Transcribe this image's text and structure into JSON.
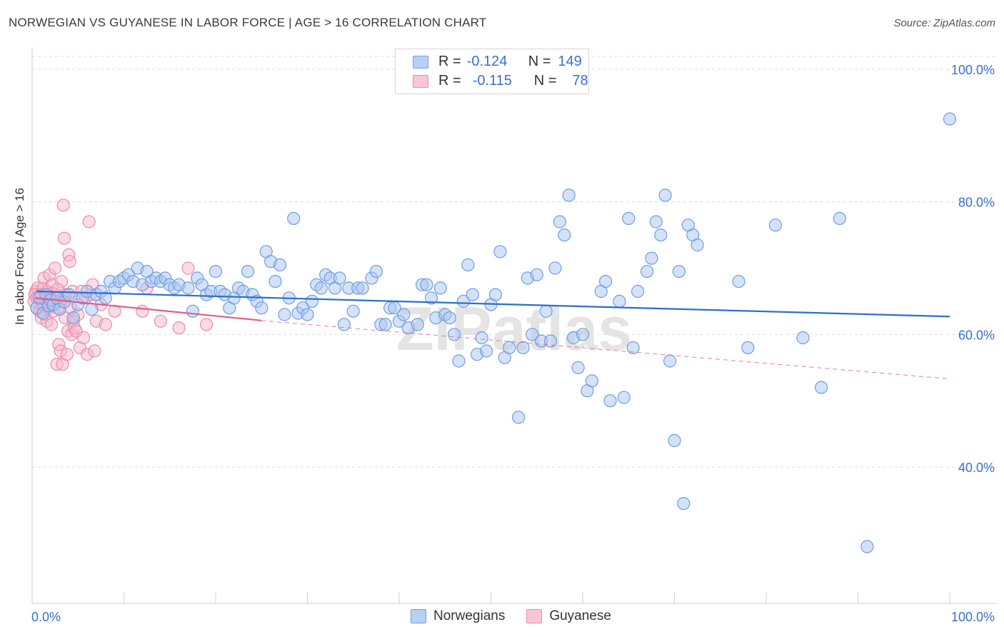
{
  "header": {
    "title": "NORWEGIAN VS GUYANESE IN LABOR FORCE | AGE > 16 CORRELATION CHART",
    "source": "Source: ZipAtlas.com"
  },
  "legend": {
    "rows": [
      {
        "r_label": "R =",
        "r_value": "-0.124",
        "n_label": "N =",
        "n_value": "149"
      },
      {
        "r_label": "R =",
        "r_value": "-0.115",
        "n_label": "N =",
        "n_value": "78"
      }
    ]
  },
  "bottom_legend": [
    "Norwegians",
    "Guyanese"
  ],
  "watermark": "ZIPatlas",
  "colors": {
    "norwegian_fill": "#a9c6f2",
    "norwegian_stroke": "#6f9de0",
    "norwegian_line": "#2c6fd0",
    "guyanese_fill": "#f7b8cc",
    "guyanese_stroke": "#ec8aab",
    "guyanese_line": "#e45b88",
    "axis_label": "#3b6fd0",
    "grid": "#dcdcdc"
  },
  "chart_data": {
    "type": "scatter",
    "title": "NORWEGIAN VS GUYANESE IN LABOR FORCE | AGE > 16 CORRELATION CHART",
    "xlabel": "",
    "ylabel": "In Labor Force | Age > 16",
    "xlim": [
      0,
      100
    ],
    "ylim": [
      20,
      100
    ],
    "x_tick_labels": [
      "0.0%",
      "100.0%"
    ],
    "y_tick_labels": [
      "40.0%",
      "60.0%",
      "80.0%",
      "100.0%"
    ],
    "y_ticks": [
      40,
      60,
      80,
      100
    ],
    "grid": true,
    "legend_position": "top-center",
    "series": [
      {
        "name": "Norwegians",
        "r": -0.124,
        "n": 149,
        "trend": {
          "x0": 0.5,
          "y0": 66.5,
          "x1": 100,
          "y1": 62.7
        },
        "points": [
          [
            0.5,
            64
          ],
          [
            0.8,
            65.5
          ],
          [
            1.2,
            63.2
          ],
          [
            1.5,
            66
          ],
          [
            1.8,
            64.3
          ],
          [
            2,
            65.2
          ],
          [
            2.3,
            64.5
          ],
          [
            2.7,
            65.5
          ],
          [
            3,
            63.8
          ],
          [
            3.5,
            64.9
          ],
          [
            4,
            66
          ],
          [
            4.5,
            62.5
          ],
          [
            5,
            64.5
          ],
          [
            5.5,
            65.5
          ],
          [
            6,
            66.5
          ],
          [
            6.5,
            63.8
          ],
          [
            7,
            66
          ],
          [
            7.5,
            66.5
          ],
          [
            8,
            65.5
          ],
          [
            8.5,
            68
          ],
          [
            9,
            67
          ],
          [
            9.5,
            68
          ],
          [
            10,
            68.5
          ],
          [
            10.5,
            69
          ],
          [
            11,
            68
          ],
          [
            11.5,
            70
          ],
          [
            12,
            67.5
          ],
          [
            12.5,
            69.5
          ],
          [
            13,
            68
          ],
          [
            13.5,
            68.5
          ],
          [
            14,
            68
          ],
          [
            14.5,
            68.5
          ],
          [
            15,
            67.5
          ],
          [
            15.5,
            67
          ],
          [
            16,
            67.5
          ],
          [
            17,
            67
          ],
          [
            17.5,
            63.5
          ],
          [
            18,
            68.5
          ],
          [
            18.5,
            67.5
          ],
          [
            19,
            66
          ],
          [
            19.5,
            66.5
          ],
          [
            20,
            69.5
          ],
          [
            20.5,
            66.5
          ],
          [
            21,
            66
          ],
          [
            21.5,
            64
          ],
          [
            22,
            65.5
          ],
          [
            22.5,
            67
          ],
          [
            23,
            66.5
          ],
          [
            23.5,
            69.5
          ],
          [
            24,
            66
          ],
          [
            24.5,
            65
          ],
          [
            25,
            64
          ],
          [
            25.5,
            72.5
          ],
          [
            26,
            71
          ],
          [
            26.5,
            68
          ],
          [
            27,
            70.5
          ],
          [
            27.5,
            63
          ],
          [
            28,
            65.5
          ],
          [
            28.5,
            77.5
          ],
          [
            29,
            63.2
          ],
          [
            29.5,
            64
          ],
          [
            30,
            63
          ],
          [
            30.5,
            65
          ],
          [
            31,
            67.5
          ],
          [
            31.5,
            67
          ],
          [
            32,
            69
          ],
          [
            32.5,
            68.5
          ],
          [
            33,
            67
          ],
          [
            33.5,
            68.5
          ],
          [
            34,
            61.5
          ],
          [
            34.5,
            67
          ],
          [
            35,
            63.5
          ],
          [
            35.5,
            67
          ],
          [
            36,
            67
          ],
          [
            37,
            68.5
          ],
          [
            37.5,
            69.5
          ],
          [
            38,
            61.5
          ],
          [
            38.5,
            61.5
          ],
          [
            39,
            64
          ],
          [
            39.5,
            64
          ],
          [
            40,
            62
          ],
          [
            40.5,
            63
          ],
          [
            41,
            61
          ],
          [
            42,
            61.5
          ],
          [
            42.5,
            67.5
          ],
          [
            43,
            67.5
          ],
          [
            43.5,
            65.5
          ],
          [
            44,
            62.5
          ],
          [
            44.5,
            67
          ],
          [
            45,
            63
          ],
          [
            45.5,
            62.5
          ],
          [
            46,
            60
          ],
          [
            46.5,
            56
          ],
          [
            47,
            65
          ],
          [
            47.5,
            70.5
          ],
          [
            48,
            66
          ],
          [
            48.5,
            57
          ],
          [
            49,
            59.5
          ],
          [
            49.5,
            57.5
          ],
          [
            50,
            64.5
          ],
          [
            50.5,
            66
          ],
          [
            51,
            72.5
          ],
          [
            51.5,
            56.5
          ],
          [
            52,
            58
          ],
          [
            53,
            47.5
          ],
          [
            53.5,
            58
          ],
          [
            54,
            68.5
          ],
          [
            54.5,
            60
          ],
          [
            55,
            69
          ],
          [
            55.5,
            59
          ],
          [
            56,
            63.5
          ],
          [
            56.5,
            59
          ],
          [
            57,
            70
          ],
          [
            57.5,
            77
          ],
          [
            58,
            75
          ],
          [
            58.5,
            81
          ],
          [
            59,
            59.5
          ],
          [
            59.5,
            55
          ],
          [
            60,
            60
          ],
          [
            60.5,
            51.5
          ],
          [
            61,
            53
          ],
          [
            62,
            66.5
          ],
          [
            62.5,
            68
          ],
          [
            63,
            50
          ],
          [
            64,
            65
          ],
          [
            64.5,
            50.5
          ],
          [
            65,
            77.5
          ],
          [
            65.5,
            58
          ],
          [
            66,
            66.5
          ],
          [
            67,
            69.5
          ],
          [
            67.5,
            71.5
          ],
          [
            68,
            77
          ],
          [
            68.5,
            75
          ],
          [
            69,
            81
          ],
          [
            69.5,
            56
          ],
          [
            70,
            44
          ],
          [
            70.5,
            69.5
          ],
          [
            71,
            34.5
          ],
          [
            71.5,
            76.5
          ],
          [
            72,
            75
          ],
          [
            72.5,
            73.5
          ],
          [
            77,
            68
          ],
          [
            78,
            58
          ],
          [
            81,
            76.5
          ],
          [
            84,
            59.5
          ],
          [
            86,
            52
          ],
          [
            88,
            77.5
          ],
          [
            91,
            28
          ],
          [
            100,
            92.5
          ]
        ]
      },
      {
        "name": "Guyanese",
        "r": -0.115,
        "n": 78,
        "trend": {
          "x0": 0.3,
          "y0": 65.5,
          "x1": 25,
          "y1": 62.1
        },
        "trend_dashed": {
          "x0": 25,
          "y0": 62.1,
          "x1": 100,
          "y1": 53.3
        },
        "points": [
          [
            0.2,
            65
          ],
          [
            0.4,
            66.5
          ],
          [
            0.5,
            64
          ],
          [
            0.6,
            67
          ],
          [
            0.7,
            65.5
          ],
          [
            0.8,
            63.5
          ],
          [
            0.9,
            66
          ],
          [
            1,
            62.5
          ],
          [
            1.1,
            64.5
          ],
          [
            1.2,
            67
          ],
          [
            1.3,
            68.5
          ],
          [
            1.4,
            63
          ],
          [
            1.5,
            65
          ],
          [
            1.6,
            62
          ],
          [
            1.7,
            66.5
          ],
          [
            1.8,
            64
          ],
          [
            1.9,
            69
          ],
          [
            2,
            65.5
          ],
          [
            2.1,
            61.5
          ],
          [
            2.2,
            67.5
          ],
          [
            2.3,
            63.5
          ],
          [
            2.4,
            65
          ],
          [
            2.5,
            70
          ],
          [
            2.6,
            66
          ],
          [
            2.7,
            55.5
          ],
          [
            2.8,
            64
          ],
          [
            2.9,
            58.5
          ],
          [
            3,
            65.5
          ],
          [
            3.1,
            57.5
          ],
          [
            3.2,
            68
          ],
          [
            3.3,
            55.5
          ],
          [
            3.4,
            79.5
          ],
          [
            3.5,
            74.5
          ],
          [
            3.6,
            62.5
          ],
          [
            3.7,
            66
          ],
          [
            3.8,
            57
          ],
          [
            3.9,
            60.5
          ],
          [
            4,
            72
          ],
          [
            4.1,
            71
          ],
          [
            4.2,
            64
          ],
          [
            4.3,
            60
          ],
          [
            4.4,
            66.5
          ],
          [
            4.5,
            62
          ],
          [
            4.6,
            61
          ],
          [
            4.8,
            60.5
          ],
          [
            5,
            63
          ],
          [
            5.2,
            58
          ],
          [
            5.4,
            66.5
          ],
          [
            5.6,
            59.5
          ],
          [
            5.8,
            65.5
          ],
          [
            6,
            57
          ],
          [
            6.2,
            77
          ],
          [
            6.4,
            66
          ],
          [
            6.6,
            67.5
          ],
          [
            6.8,
            57.5
          ],
          [
            7,
            62
          ],
          [
            7.5,
            64.5
          ],
          [
            8,
            61.5
          ],
          [
            9,
            63.5
          ],
          [
            12,
            63.5
          ],
          [
            12.5,
            67
          ],
          [
            14,
            62
          ],
          [
            16,
            61
          ],
          [
            17,
            70
          ],
          [
            19,
            61.5
          ],
          [
            0.3,
            66
          ],
          [
            0.5,
            65.5
          ],
          [
            1,
            66
          ],
          [
            1.5,
            65.5
          ],
          [
            2,
            64.5
          ],
          [
            2.5,
            65
          ],
          [
            3,
            65
          ],
          [
            3.5,
            66
          ],
          [
            1.2,
            64.8
          ],
          [
            2.2,
            66.2
          ],
          [
            0.8,
            65.8
          ],
          [
            1.8,
            65.2
          ],
          [
            2.8,
            66.8
          ]
        ]
      }
    ]
  }
}
